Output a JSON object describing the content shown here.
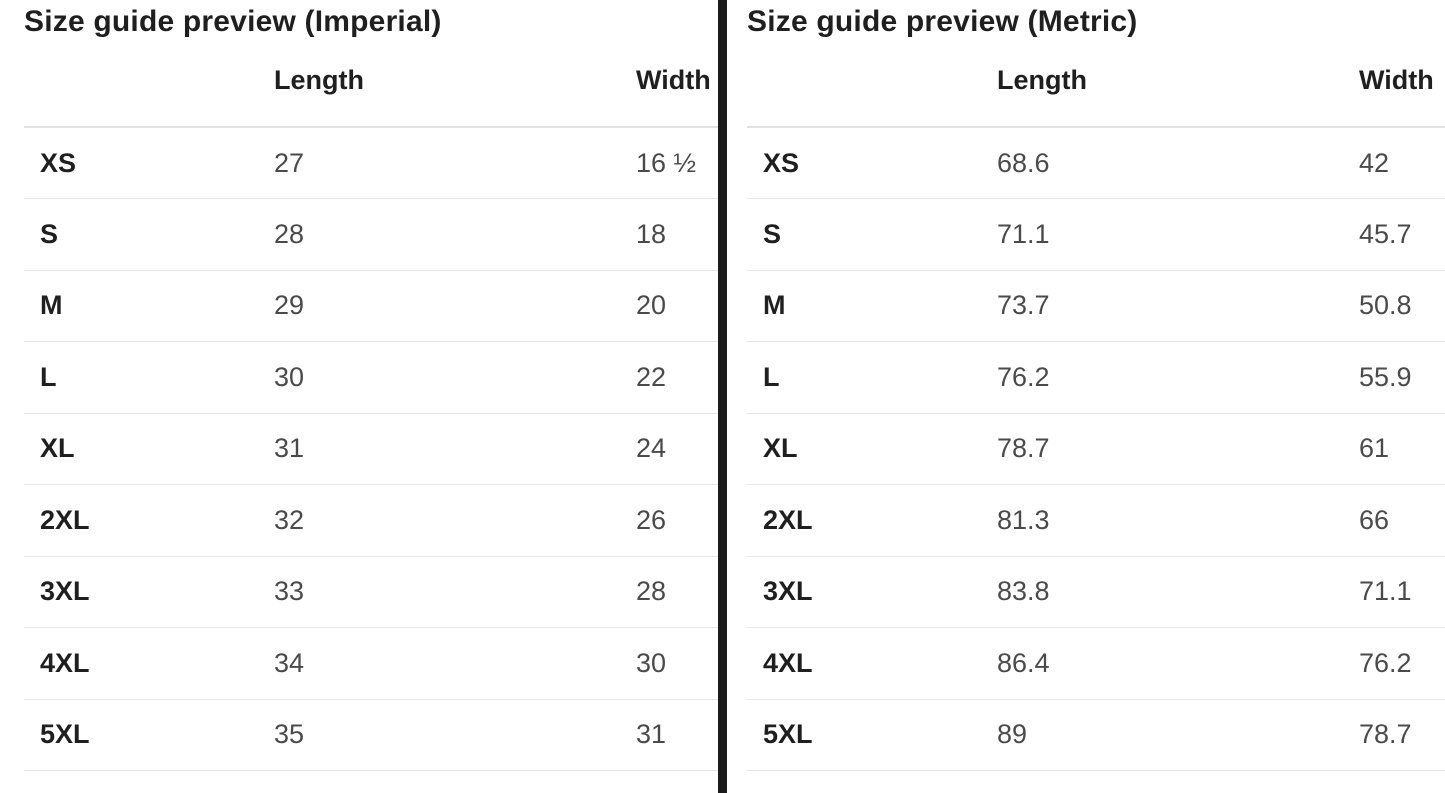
{
  "page": {
    "background": "#ffffff",
    "divider_color": "#1b1b1b",
    "heading_text_color": "#1f1f1f",
    "value_text_color": "#4a4a4a",
    "header_rule_color": "#e2e2e2",
    "row_rule_color": "#e7e7e7"
  },
  "tables": [
    {
      "title": "Size guide preview (Imperial)",
      "columns": {
        "size": "",
        "length": "Length",
        "width": "Width"
      },
      "rows": [
        {
          "size": "XS",
          "length": "27",
          "width": "16 ½"
        },
        {
          "size": "S",
          "length": "28",
          "width": "18"
        },
        {
          "size": "M",
          "length": "29",
          "width": "20"
        },
        {
          "size": "L",
          "length": "30",
          "width": "22"
        },
        {
          "size": "XL",
          "length": "31",
          "width": "24"
        },
        {
          "size": "2XL",
          "length": "32",
          "width": "26"
        },
        {
          "size": "3XL",
          "length": "33",
          "width": "28"
        },
        {
          "size": "4XL",
          "length": "34",
          "width": "30"
        },
        {
          "size": "5XL",
          "length": "35",
          "width": "31"
        }
      ]
    },
    {
      "title": "Size guide preview (Metric)",
      "columns": {
        "size": "",
        "length": "Length",
        "width": "Width"
      },
      "rows": [
        {
          "size": "XS",
          "length": "68.6",
          "width": "42"
        },
        {
          "size": "S",
          "length": "71.1",
          "width": "45.7"
        },
        {
          "size": "M",
          "length": "73.7",
          "width": "50.8"
        },
        {
          "size": "L",
          "length": "76.2",
          "width": "55.9"
        },
        {
          "size": "XL",
          "length": "78.7",
          "width": "61"
        },
        {
          "size": "2XL",
          "length": "81.3",
          "width": "66"
        },
        {
          "size": "3XL",
          "length": "83.8",
          "width": "71.1"
        },
        {
          "size": "4XL",
          "length": "86.4",
          "width": "76.2"
        },
        {
          "size": "5XL",
          "length": "89",
          "width": "78.7"
        }
      ]
    }
  ]
}
